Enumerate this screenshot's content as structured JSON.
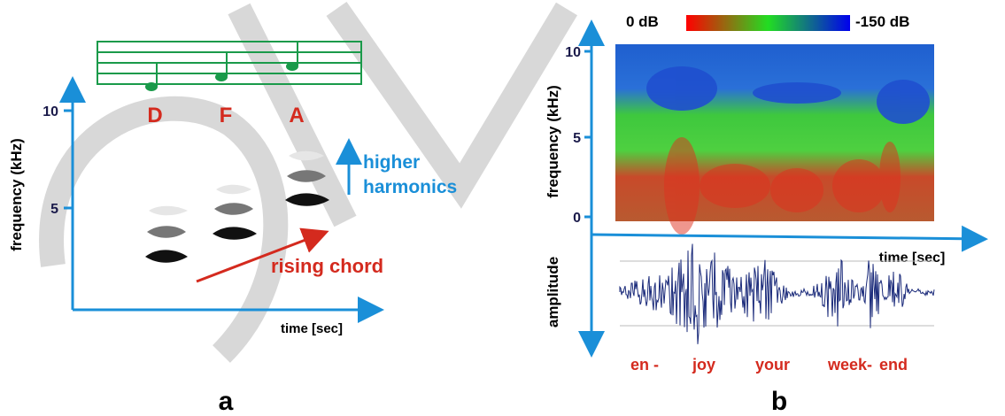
{
  "panel_a": {
    "notes": [
      "D",
      "F",
      "A"
    ],
    "y_ticks": [
      "10",
      "5"
    ],
    "y_label": "frequency (kHz)",
    "x_label": "time [sec]",
    "harmonics_label": [
      "higher",
      "harmonics"
    ],
    "chord_label": "rising chord",
    "panel_label": "a"
  },
  "panel_b": {
    "colorbar": {
      "min_label": "0 dB",
      "max_label": "-150 dB"
    },
    "y_ticks": [
      "10",
      "5",
      "0"
    ],
    "y_label": "frequency (kHz)",
    "x_label": "time [sec]",
    "amplitude_label": "amplitude",
    "words": [
      "en -",
      "joy",
      "your",
      "week-",
      "end"
    ],
    "panel_label": "b"
  }
}
